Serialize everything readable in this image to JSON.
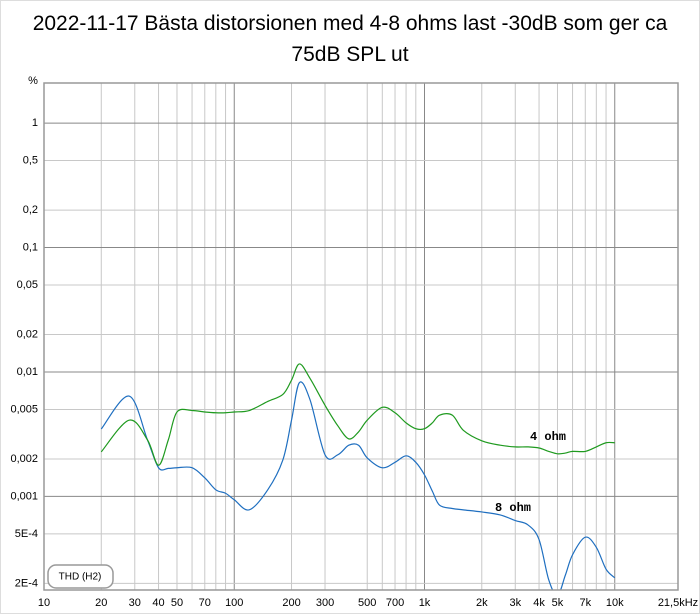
{
  "chart_data": {
    "type": "line",
    "title": "2022-11-17 Bästa distorsionen med 4-8 ohms last -30dB som ger ca 75dB SPL ut",
    "ylabel": "%",
    "legend_title": "THD (H2)",
    "xscale": "log",
    "yscale": "log",
    "grid": true,
    "xlim": [
      10,
      21500
    ],
    "ylim": [
      0.000177,
      2.1
    ],
    "xticks": [
      10,
      20,
      30,
      40,
      50,
      70,
      100,
      200,
      300,
      500,
      700,
      {
        "value": 1000,
        "label": "1k"
      },
      {
        "value": 2000,
        "label": "2k"
      },
      {
        "value": 3000,
        "label": "3k"
      },
      {
        "value": 4000,
        "label": "4k"
      },
      {
        "value": 5000,
        "label": "5k"
      },
      {
        "value": 7000,
        "label": "7k"
      },
      {
        "value": 10000,
        "label": "10k"
      },
      {
        "value": 21500,
        "label": "21,5kHz"
      }
    ],
    "xminorticks": [
      60,
      80,
      90,
      600,
      800,
      900,
      6000,
      8000,
      9000
    ],
    "yticks": [
      1,
      {
        "value": 0.5,
        "label": "0,5"
      },
      {
        "value": 0.2,
        "label": "0,2"
      },
      {
        "value": 0.1,
        "label": "0,1"
      },
      {
        "value": 0.05,
        "label": "0,05"
      },
      {
        "value": 0.02,
        "label": "0,02"
      },
      {
        "value": 0.01,
        "label": "0,01"
      },
      {
        "value": 0.005,
        "label": "0,005"
      },
      {
        "value": 0.002,
        "label": "0,002"
      },
      {
        "value": 0.001,
        "label": "0,001"
      },
      {
        "value": 0.0005,
        "label": "5E-4"
      },
      {
        "value": 0.0002,
        "label": "2E-4"
      }
    ],
    "x": [
      20,
      28,
      35,
      40,
      45,
      50,
      60,
      70,
      80,
      90,
      100,
      120,
      150,
      180,
      200,
      220,
      250,
      300,
      350,
      400,
      450,
      500,
      600,
      700,
      800,
      900,
      1000,
      1100,
      1200,
      1400,
      1600,
      2000,
      2500,
      3000,
      3500,
      4000,
      4500,
      5000,
      5500,
      6000,
      7000,
      8000,
      9000,
      10000
    ],
    "series": [
      {
        "name": "8 ohm",
        "color": "#1f6fc0",
        "values": [
          0.00348,
          0.0064,
          0.00284,
          0.0017,
          0.00168,
          0.0017,
          0.0017,
          0.00141,
          0.00113,
          0.00106,
          0.00094,
          0.00078,
          0.00113,
          0.00196,
          0.0041,
          0.0082,
          0.006,
          0.00216,
          0.00216,
          0.00258,
          0.00258,
          0.00204,
          0.0017,
          0.00188,
          0.00212,
          0.00188,
          0.00149,
          0.0011,
          0.00085,
          0.0008,
          0.00078,
          0.00075,
          0.00071,
          0.00064,
          0.00059,
          0.00045,
          0.000213,
          0.00016,
          0.000233,
          0.00034,
          0.00047,
          0.00039,
          0.00026,
          0.000222
        ]
      },
      {
        "name": "4 ohm",
        "color": "#1f9a1f",
        "values": [
          0.00228,
          0.0041,
          0.00284,
          0.00178,
          0.00284,
          0.00477,
          0.0049,
          0.00477,
          0.0047,
          0.0047,
          0.00477,
          0.0049,
          0.0058,
          0.0066,
          0.0086,
          0.0116,
          0.0089,
          0.0054,
          0.0037,
          0.0029,
          0.0033,
          0.0041,
          0.0052,
          0.0047,
          0.0039,
          0.0035,
          0.0035,
          0.0039,
          0.0045,
          0.0045,
          0.0034,
          0.0028,
          0.00258,
          0.0025,
          0.0025,
          0.00245,
          0.0023,
          0.0022,
          0.00223,
          0.0023,
          0.0023,
          0.0025,
          0.0027,
          0.0027
        ]
      }
    ],
    "label_color": "#d42020"
  }
}
